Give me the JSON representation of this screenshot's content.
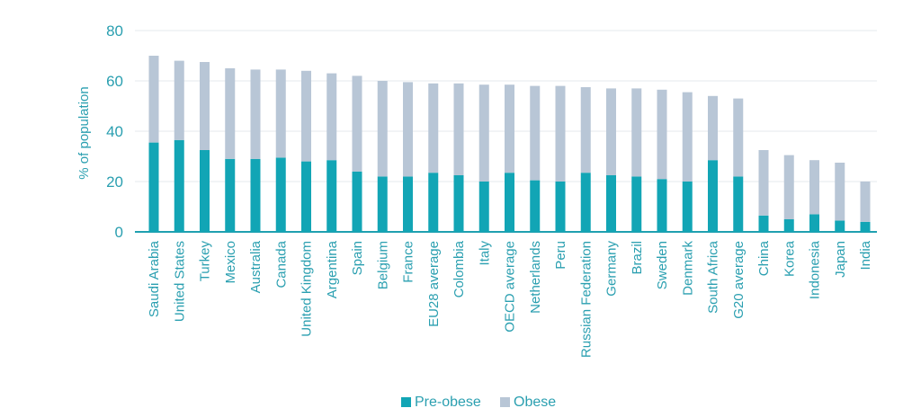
{
  "chart_data": {
    "type": "bar",
    "stacked": true,
    "title": "",
    "xlabel": "",
    "ylabel": "% of population",
    "ylim": [
      0,
      80
    ],
    "yticks": [
      0,
      20,
      40,
      60,
      80
    ],
    "grid": true,
    "legend_position": "bottom-center",
    "categories": [
      "Saudi Arabia",
      "United States",
      "Turkey",
      "Mexico",
      "Australia",
      "Canada",
      "United Kingdom",
      "Argentina",
      "Spain",
      "Belgium",
      "France",
      "EU28 average",
      "Colombia",
      "Italy",
      "OECD average",
      "Netherlands",
      "Peru",
      "Russian Federation",
      "Germany",
      "Brazil",
      "Sweden",
      "Denmark",
      "South Africa",
      "G20 average",
      "China",
      "Korea",
      "Indonesia",
      "Japan",
      "India"
    ],
    "series": [
      {
        "name": "Pre-obese",
        "color": "#12a5b5",
        "values": [
          35.5,
          36.5,
          32.5,
          29,
          29,
          29.5,
          28,
          28.5,
          24,
          22,
          22,
          23.5,
          22.5,
          20,
          23.5,
          20.5,
          20,
          23.5,
          22.5,
          22,
          21,
          20,
          28.5,
          22,
          6.5,
          5,
          7,
          4.5,
          4
        ]
      },
      {
        "name": "Obese",
        "color": "#b8c6d6",
        "values": [
          34.5,
          31.5,
          35,
          36,
          35.5,
          35,
          36,
          34.5,
          38,
          38,
          37.5,
          35.5,
          36.5,
          38.5,
          35,
          37.5,
          38,
          34,
          34.5,
          35,
          35.5,
          35.5,
          25.5,
          31,
          26,
          25.5,
          21.5,
          23,
          16
        ]
      }
    ]
  }
}
